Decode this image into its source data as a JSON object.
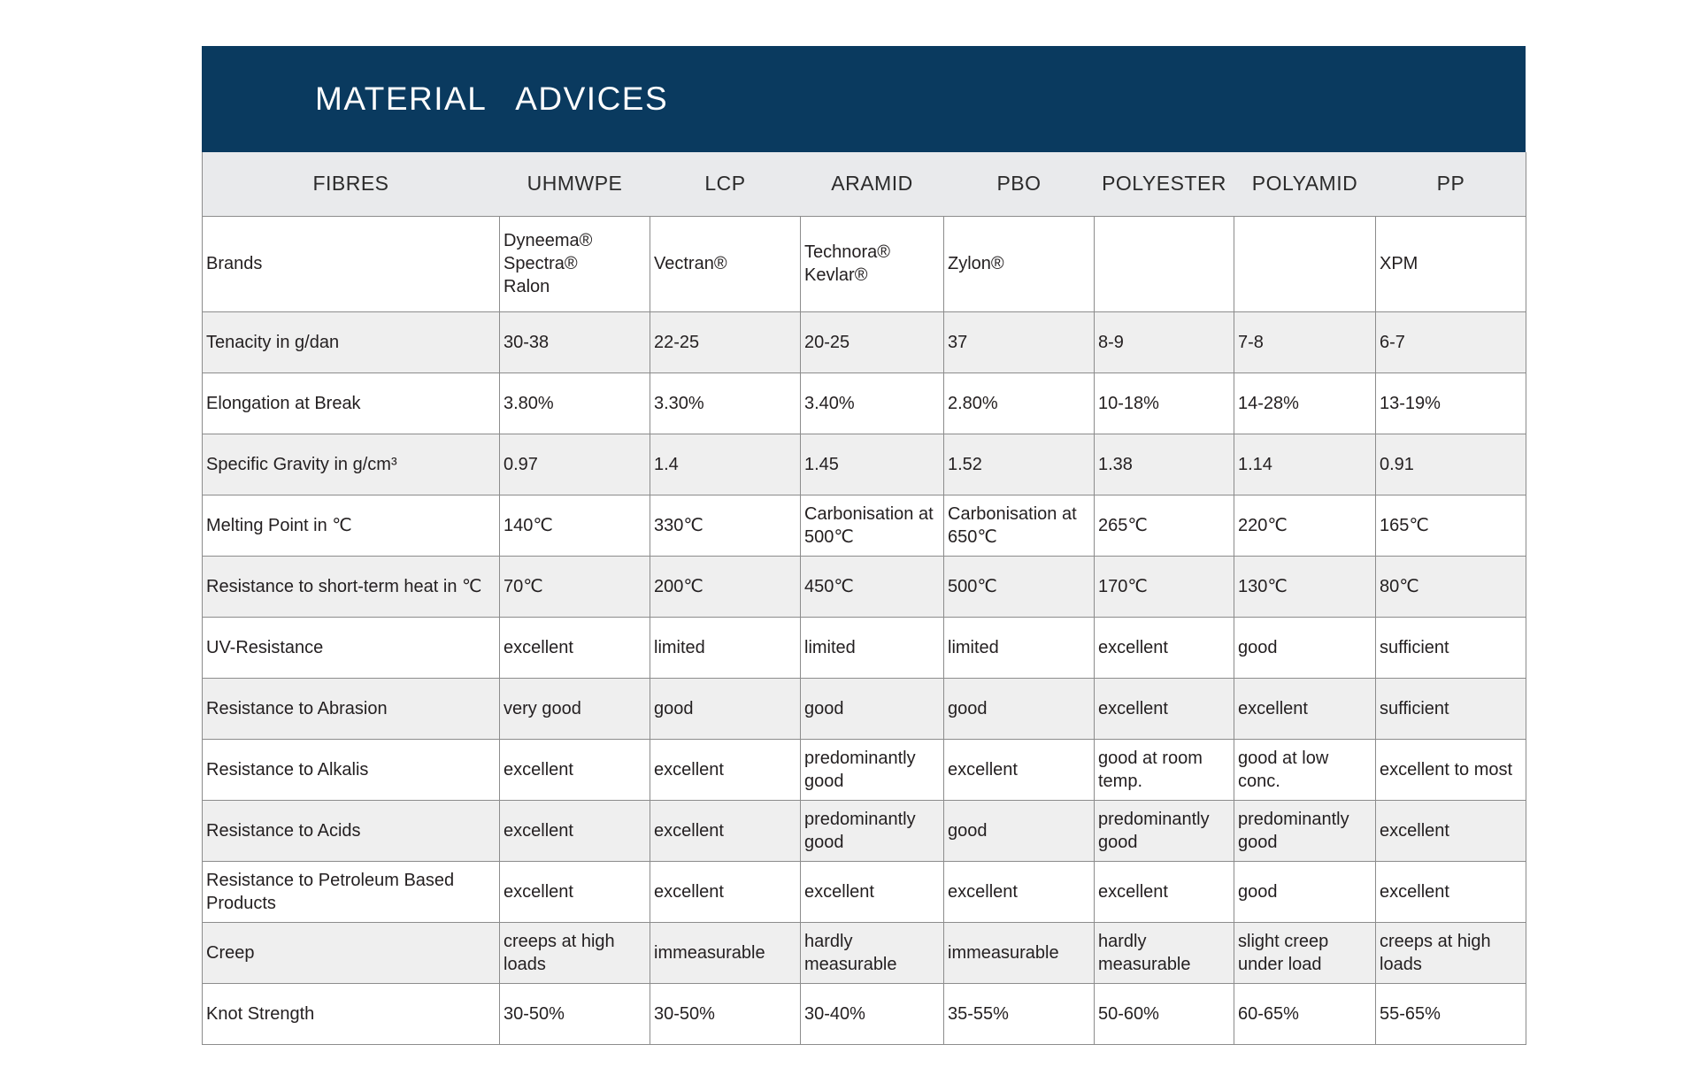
{
  "title": "MATERIAL   ADVICES",
  "headers": [
    "FIBRES",
    "UHMWPE",
    "LCP",
    "ARAMID",
    "PBO",
    "POLYESTER",
    "POLYAMID",
    "PP"
  ],
  "rows": [
    {
      "label": "Brands",
      "values": [
        "Dyneema®\nSpectra®\nRalon",
        "Vectran®",
        "Technora®\nKevlar®",
        "Zylon®",
        "",
        "",
        "XPM"
      ]
    },
    {
      "label": "Tenacity in g/dan",
      "values": [
        "30-38",
        "22-25",
        "20-25",
        "37",
        "8-9",
        "7-8",
        "6-7"
      ]
    },
    {
      "label": "Elongation at Break",
      "values": [
        "3.80%",
        "3.30%",
        "3.40%",
        "2.80%",
        "10-18%",
        "14-28%",
        "13-19%"
      ]
    },
    {
      "label": "Specific Gravity in g/cm³",
      "values": [
        "0.97",
        "1.4",
        "1.45",
        "1.52",
        "1.38",
        "1.14",
        "0.91"
      ]
    },
    {
      "label": "Melting Point in ℃",
      "values": [
        "140℃",
        "330℃",
        "Carbonisation at\n500℃",
        "Carbonisation at\n650℃",
        "265℃",
        "220℃",
        "165℃"
      ]
    },
    {
      "label": "Resistance to short-term heat in ℃",
      "values": [
        "70℃",
        "200℃",
        "450℃",
        "500℃",
        "170℃",
        "130℃",
        "80℃"
      ]
    },
    {
      "label": "UV-Resistance",
      "values": [
        "excellent",
        "limited",
        "limited",
        "limited",
        "excellent",
        "good",
        "sufficient"
      ]
    },
    {
      "label": "Resistance to Abrasion",
      "values": [
        "very good",
        "good",
        "good",
        "good",
        "excellent",
        "excellent",
        "sufficient"
      ]
    },
    {
      "label": "Resistance to Alkalis",
      "values": [
        "excellent",
        "excellent",
        "predominantly\ngood",
        "excellent",
        "good at room\ntemp.",
        "good at low\nconc.",
        "excellent to most"
      ]
    },
    {
      "label": "Resistance to Acids",
      "values": [
        "excellent",
        "excellent",
        "predominantly\ngood",
        "good",
        "predominantly\ngood",
        "predominantly\ngood",
        "excellent"
      ]
    },
    {
      "label": "Resistance to Petroleum Based\nProducts",
      "values": [
        "excellent",
        "excellent",
        "excellent",
        "excellent",
        "excellent",
        "good",
        "excellent"
      ]
    },
    {
      "label": "Creep",
      "values": [
        "creeps at high\nloads",
        "immeasurable",
        "hardly\nmeasurable",
        "immeasurable",
        "hardly\nmeasurable",
        "slight creep\nunder load",
        "creeps at high\nloads"
      ]
    },
    {
      "label": "Knot Strength",
      "values": [
        "30-50%",
        "30-50%",
        "30-40%",
        "35-55%",
        "50-60%",
        "60-65%",
        "55-65%"
      ]
    }
  ],
  "colors": {
    "banner": "#0a3a5f",
    "header_row": "#e9eaec",
    "alt_row": "#efefef",
    "grid": "#8c8c8c"
  }
}
